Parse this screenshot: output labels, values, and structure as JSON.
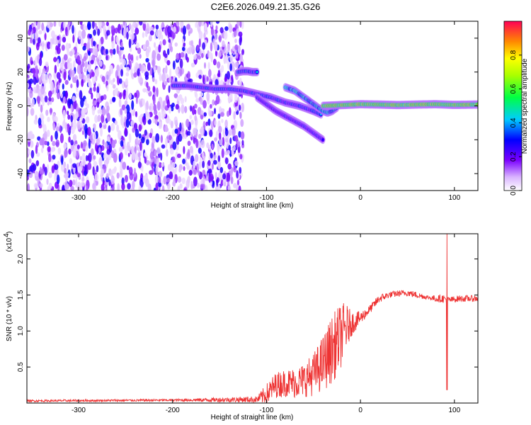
{
  "title": "C2E6.2026.049.21.35.G26",
  "chart_data": [
    {
      "type": "heatmap",
      "name": "spectrogram",
      "xlabel": "Height of straight line (km)",
      "ylabel": "Frequency (Hz)",
      "xlim": [
        -355,
        125
      ],
      "ylim": [
        -50,
        50
      ],
      "xticks": [
        -300,
        -200,
        -100,
        0,
        100
      ],
      "yticks": [
        -40,
        -20,
        0,
        20,
        40
      ],
      "colorbar": {
        "label": "Normalized spectral amplitude",
        "range": [
          0,
          1
        ],
        "ticks": [
          0.0,
          0.2,
          0.4,
          0.6,
          0.8
        ]
      },
      "noise_region_x": [
        -355,
        -125
      ],
      "features": [
        {
          "label": "band_main",
          "x": [
            -200,
            -185,
            -170,
            -155,
            -140,
            -125,
            -110,
            -95,
            -80,
            -65,
            -50,
            -42
          ],
          "y": [
            12,
            12,
            11,
            10,
            10,
            9,
            7,
            5,
            2,
            0,
            -3,
            -5
          ],
          "amplitude": 0.35
        },
        {
          "label": "band_high",
          "x": [
            -130,
            -125,
            -120,
            -115,
            -110
          ],
          "y": [
            20,
            20.5,
            20.5,
            20,
            20
          ],
          "amplitude": 0.4
        },
        {
          "label": "band_curve",
          "x": [
            -80,
            -75,
            -70,
            -65,
            -60,
            -55,
            -50,
            -45,
            -40,
            -35,
            -30,
            -25
          ],
          "y": [
            11,
            10,
            9,
            7,
            5,
            3,
            1,
            -1,
            -3,
            -4,
            -3,
            -1
          ],
          "amplitude": 0.5
        },
        {
          "label": "band_lower",
          "x": [
            -110,
            -100,
            -90,
            -80,
            -70,
            -60,
            -50,
            -40
          ],
          "y": [
            5,
            1,
            -3,
            -6,
            -9,
            -12,
            -16,
            -20
          ],
          "amplitude": 0.25
        },
        {
          "label": "band_ground",
          "x": [
            -40,
            -20,
            0,
            20,
            40,
            60,
            80,
            100,
            125
          ],
          "y": [
            0,
            0.5,
            1,
            0.8,
            0.5,
            0.8,
            1,
            0.6,
            0.8
          ],
          "amplitude": 0.8
        }
      ]
    },
    {
      "type": "line",
      "name": "snr",
      "xlabel": "Height of straight line (km)",
      "ylabel": "SNR (10 * v/v)",
      "yunit_label": "(x10",
      "yunit_exp": "4",
      "xlim": [
        -355,
        125
      ],
      "ylim": [
        0,
        2.35
      ],
      "xticks": [
        -300,
        -200,
        -100,
        0,
        100
      ],
      "yticks": [
        0.5,
        1.0,
        1.5,
        2.0
      ],
      "ytick_labels": [
        "0.5",
        "1.0",
        "1.5",
        "2.0"
      ],
      "color": "#ee3333",
      "series_envelope": {
        "x": [
          -355,
          -200,
          -110,
          -100,
          -90,
          -80,
          -70,
          -60,
          -50,
          -40,
          -30,
          -20,
          -15,
          -10,
          0,
          10,
          20,
          30,
          40,
          50,
          60,
          70,
          80,
          88,
          95,
          105,
          125
        ],
        "y": [
          0.03,
          0.04,
          0.05,
          0.12,
          0.25,
          0.28,
          0.28,
          0.32,
          0.4,
          0.55,
          0.75,
          0.95,
          1.05,
          1.1,
          1.18,
          1.3,
          1.45,
          1.5,
          1.52,
          1.53,
          1.5,
          1.47,
          1.45,
          1.45,
          1.43,
          1.45,
          1.45
        ],
        "noise": [
          0.01,
          0.01,
          0.03,
          0.1,
          0.12,
          0.13,
          0.14,
          0.16,
          0.2,
          0.26,
          0.32,
          0.3,
          0.22,
          0.12,
          0.06,
          0.04,
          0.04,
          0.03,
          0.03,
          0.03,
          0.03,
          0.02,
          0.03,
          0.04,
          0.03,
          0.03,
          0.03
        ]
      },
      "spike": {
        "x": 92,
        "max": 2.35,
        "min": 0.18
      }
    }
  ]
}
